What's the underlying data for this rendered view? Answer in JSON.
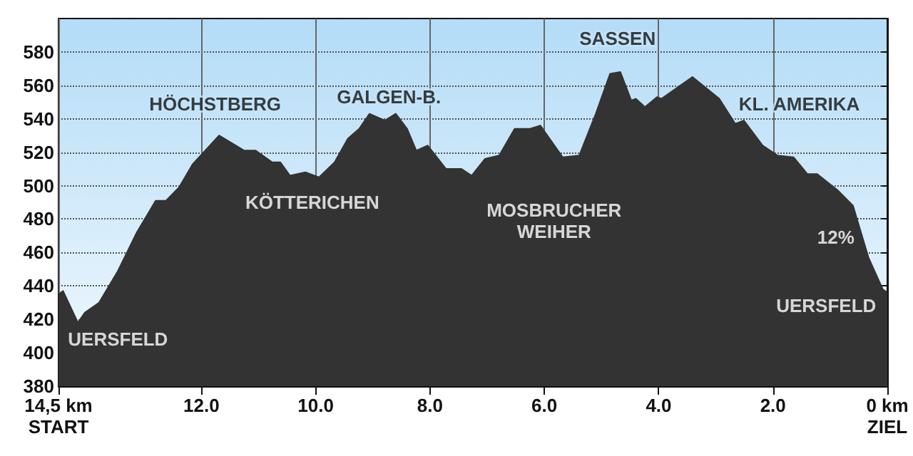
{
  "chart_data": {
    "type": "area",
    "x": [
      14.5,
      14.42,
      14.16,
      14.04,
      13.79,
      13.46,
      13.13,
      12.8,
      12.62,
      12.39,
      12.15,
      11.69,
      11.25,
      11.05,
      10.76,
      10.62,
      10.45,
      10.18,
      9.94,
      9.67,
      9.44,
      9.24,
      9.06,
      8.79,
      8.6,
      8.4,
      8.24,
      8.04,
      7.72,
      7.45,
      7.27,
      7.04,
      6.79,
      6.52,
      6.25,
      6.07,
      5.68,
      5.39,
      5.1,
      4.85,
      4.67,
      4.48,
      4.4,
      4.24,
      4.03,
      3.95,
      3.41,
      2.94,
      2.66,
      2.51,
      2.18,
      1.92,
      1.64,
      1.4,
      1.23,
      0.86,
      0.6,
      0.33,
      0.08,
      0
    ],
    "series": [
      {
        "color": "#333333",
        "values": [
          435,
          437,
          418,
          424,
          430,
          449,
          472,
          491,
          491,
          499,
          513,
          530,
          521,
          521,
          514,
          514,
          506,
          508,
          505,
          514,
          528,
          534,
          543,
          539,
          543,
          534,
          521,
          524,
          510,
          510,
          506,
          516,
          518,
          534,
          534,
          536,
          517,
          518,
          543,
          567,
          568,
          551,
          552,
          547,
          553,
          552,
          565,
          552,
          537,
          539,
          524,
          518,
          517,
          507,
          507,
          497,
          488,
          457,
          438,
          436
        ]
      }
    ],
    "xlim": [
      14.5,
      0
    ],
    "xticks": [
      {
        "value": 14.5,
        "label": "14,5 km\nSTART"
      },
      {
        "value": 12,
        "label": "12.0"
      },
      {
        "value": 10,
        "label": "10.0"
      },
      {
        "value": 8,
        "label": "8.0"
      },
      {
        "value": 6,
        "label": "6.0"
      },
      {
        "value": 4,
        "label": "4.0"
      },
      {
        "value": 2,
        "label": "2.0"
      },
      {
        "value": 0,
        "label": "0 km\nZIEL"
      }
    ],
    "ylim": [
      380,
      600
    ],
    "yticks": [
      380,
      400,
      420,
      440,
      460,
      480,
      500,
      520,
      540,
      560,
      580
    ],
    "grid": true,
    "marker": "none",
    "line_style": "solid",
    "annotations": [
      "HÖCHSTBERG",
      "GALGEN-B.",
      "KÖTTERICHEN",
      "UERSFELD",
      "SASSEN",
      "MOSBRUCHER\nWEIHER",
      "KL. AMERIKA",
      "12%",
      "UERSFELD"
    ]
  }
}
